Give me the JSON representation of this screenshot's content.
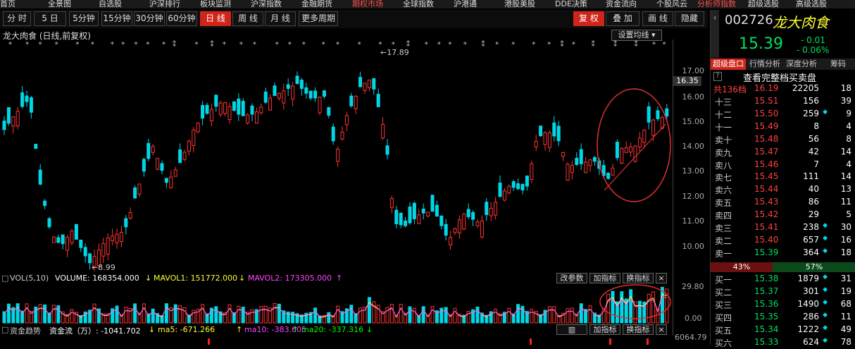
{
  "top_nav": [
    "首页",
    "全景图",
    "自选股",
    "沪深排行",
    "板块监测",
    "沪深指数",
    "金融期货",
    "期权市场",
    "全球指数",
    "沪港通",
    "港股美股",
    "DDE决策",
    "资金流向",
    "个股风云",
    "分析师指数",
    "超级选股",
    "高级选股"
  ],
  "toolbar": {
    "periods": [
      "分 时",
      "5 日",
      "5分钟",
      "15分钟",
      "30分钟",
      "60分钟",
      "日 线",
      "周 线",
      "月 线",
      "更多周期"
    ],
    "active_period": "日 线",
    "right_buttons": [
      "复 权",
      "叠 加",
      "画 线",
      "隐藏"
    ]
  },
  "chart": {
    "title": "龙大肉食 (日线,前复权)",
    "ma_settings": "设置均线",
    "high_label": "17.89",
    "low_label": "8.99",
    "price_ticks": [
      "17.00",
      "16.00",
      "15.00",
      "14.00",
      "13.00",
      "12.00",
      "11.00",
      "10.00"
    ],
    "current_price_tag": "16.35",
    "colors": {
      "up": "#ff3232",
      "down": "#00d7e6",
      "circle": "#e03030"
    }
  },
  "volume": {
    "label": "VOL(5,10)",
    "volume": "VOLUME: 168354.000",
    "mavol1": "MAVOL1: 151772.000",
    "mavol2": "MAVOL2: 173305.000",
    "btn_params": "改参数",
    "btn_add": "加指标",
    "btn_switch": "换指标",
    "ticks": [
      "29.80",
      "0.00"
    ]
  },
  "fund_flow": {
    "title": "资金趋势",
    "value": "资金流（万）: -1041.702",
    "ma5": "ma5: -671.266",
    "ma10": "ma10: -383.605",
    "ma20": "ma20: -337.316",
    "btn_add": "加指标",
    "btn_switch": "换指标",
    "axis": "6064.79"
  },
  "quote": {
    "code": "002726",
    "name": "龙大肉食",
    "price": "15.39",
    "change": "- 0.01",
    "change_pct": "- 0.06%",
    "tabs": [
      "超级盘口",
      "行情分析",
      "深度分析",
      "筹码"
    ],
    "view_full": "查看完整档买卖盘",
    "total_levels": "共136档",
    "total_price": "16.19",
    "total_vol": "22205",
    "total_cnt": "18",
    "buy_pct": "43%",
    "sell_pct": "57%",
    "asks": [
      {
        "label": "十三",
        "price": "15.51",
        "vol": "156",
        "cnt": "39"
      },
      {
        "label": "十二",
        "price": "15.50",
        "vol": "259",
        "cnt": "9"
      },
      {
        "label": "十一",
        "price": "15.49",
        "vol": "8",
        "cnt": "4"
      },
      {
        "label": "卖十",
        "price": "15.48",
        "vol": "56",
        "cnt": "8"
      },
      {
        "label": "卖九",
        "price": "15.47",
        "vol": "42",
        "cnt": "14"
      },
      {
        "label": "卖八",
        "price": "15.46",
        "vol": "7",
        "cnt": "4"
      },
      {
        "label": "卖七",
        "price": "15.45",
        "vol": "111",
        "cnt": "14"
      },
      {
        "label": "卖六",
        "price": "15.44",
        "vol": "40",
        "cnt": "13"
      },
      {
        "label": "卖五",
        "price": "15.43",
        "vol": "86",
        "cnt": "11"
      },
      {
        "label": "卖四",
        "price": "15.42",
        "vol": "29",
        "cnt": "5"
      },
      {
        "label": "卖三",
        "price": "15.41",
        "vol": "238",
        "cnt": "30"
      },
      {
        "label": "卖二",
        "price": "15.40",
        "vol": "657",
        "cnt": "16"
      },
      {
        "label": "卖一",
        "price": "15.39",
        "vol": "364",
        "cnt": "18"
      }
    ],
    "bids": [
      {
        "label": "买一",
        "price": "15.38",
        "vol": "1879",
        "cnt": "31"
      },
      {
        "label": "买二",
        "price": "15.37",
        "vol": "301",
        "cnt": "19"
      },
      {
        "label": "买三",
        "price": "15.36",
        "vol": "1490",
        "cnt": "68"
      },
      {
        "label": "买四",
        "price": "15.35",
        "vol": "286",
        "cnt": "11"
      },
      {
        "label": "买五",
        "price": "15.34",
        "vol": "1222",
        "cnt": "49"
      },
      {
        "label": "买六",
        "price": "15.33",
        "vol": "624",
        "cnt": "78"
      }
    ]
  }
}
